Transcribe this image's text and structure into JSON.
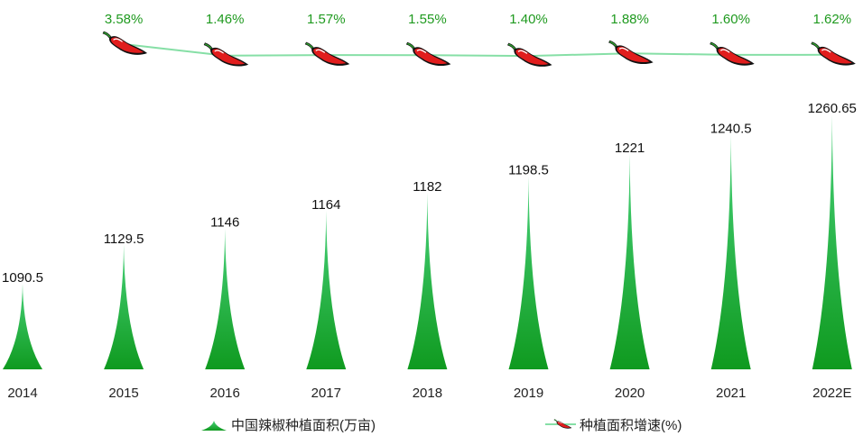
{
  "chart_data": {
    "type": "bar",
    "categories": [
      "2014",
      "2015",
      "2016",
      "2017",
      "2018",
      "2019",
      "2020",
      "2021",
      "2022E"
    ],
    "series": [
      {
        "name": "中国辣椒种植面积(万亩)",
        "type": "bar",
        "values": [
          1090.5,
          1129.5,
          1146,
          1164,
          1182,
          1198.5,
          1221,
          1240.5,
          1260.65
        ],
        "value_labels": [
          "1090.5",
          "1129.5",
          "1146",
          "1164",
          "1182",
          "1198.5",
          "1221",
          "1240.5",
          "1260.65"
        ],
        "color": "#1aa33a"
      },
      {
        "name": "种植面积增速(%)",
        "type": "line",
        "x": [
          "2015",
          "2016",
          "2017",
          "2018",
          "2019",
          "2020",
          "2021",
          "2022E"
        ],
        "values": [
          3.58,
          1.46,
          1.57,
          1.55,
          1.4,
          1.88,
          1.6,
          1.62
        ],
        "value_labels": [
          "3.58%",
          "1.46%",
          "1.57%",
          "1.55%",
          "1.40%",
          "1.88%",
          "1.60%",
          "1.62%"
        ],
        "color": "#86dfa6",
        "marker": "chili-pepper-icon"
      }
    ],
    "legend_position": "bottom",
    "grid": false,
    "colors": {
      "label_green": "#1f9a1f",
      "pepper_red": "#e11d1d",
      "pepper_stem": "#2e9e2e"
    }
  }
}
